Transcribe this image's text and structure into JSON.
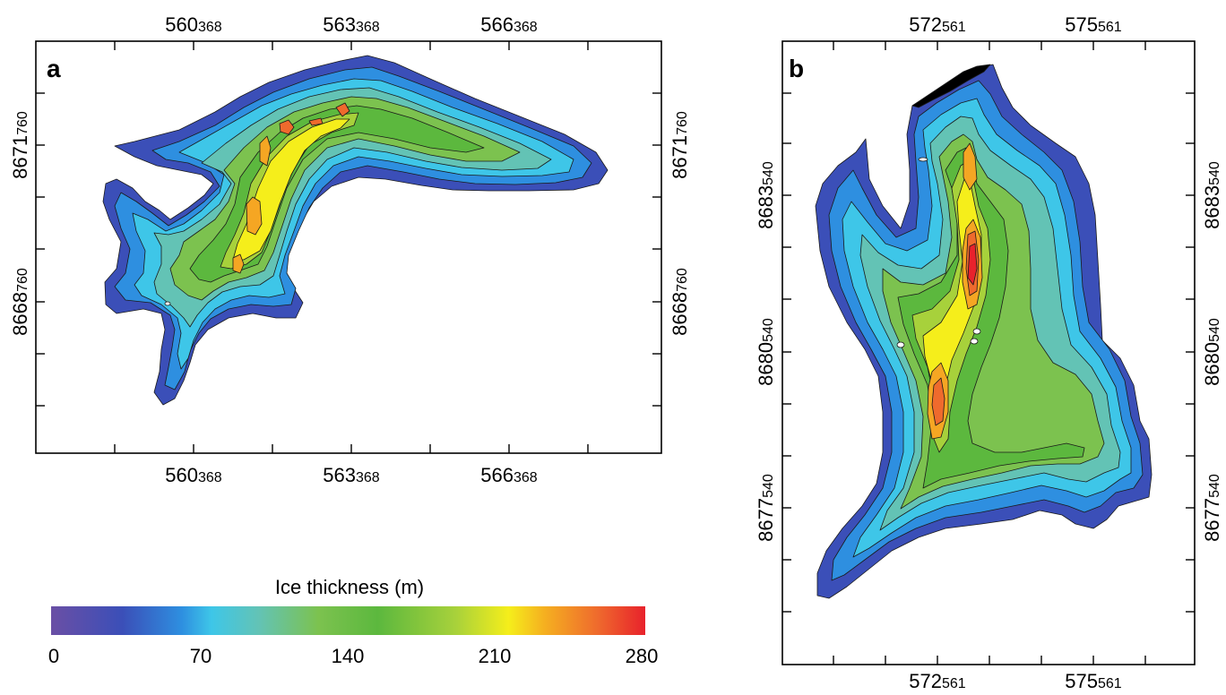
{
  "panel_a": {
    "label": "a",
    "top_ticks": [
      {
        "main": "560",
        "sub": "368"
      },
      {
        "main": "563",
        "sub": "368"
      },
      {
        "main": "566",
        "sub": "368"
      }
    ],
    "bottom_ticks": [
      {
        "main": "560",
        "sub": "368"
      },
      {
        "main": "563",
        "sub": "368"
      },
      {
        "main": "566",
        "sub": "368"
      }
    ],
    "left_ticks": [
      {
        "main": "8671",
        "sub": "760"
      },
      {
        "main": "8668",
        "sub": "760"
      }
    ],
    "right_ticks": [
      {
        "main": "8671",
        "sub": "760"
      },
      {
        "main": "8668",
        "sub": "760"
      }
    ]
  },
  "panel_b": {
    "label": "b",
    "top_ticks": [
      {
        "main": "572",
        "sub": "561"
      },
      {
        "main": "575",
        "sub": "561"
      }
    ],
    "bottom_ticks": [
      {
        "main": "572",
        "sub": "561"
      },
      {
        "main": "575",
        "sub": "561"
      }
    ],
    "left_ticks": [
      {
        "main": "8683",
        "sub": "540"
      },
      {
        "main": "8680",
        "sub": "540"
      },
      {
        "main": "8677",
        "sub": "540"
      }
    ],
    "right_ticks": [
      {
        "main": "8683",
        "sub": "540"
      },
      {
        "main": "8680",
        "sub": "540"
      },
      {
        "main": "8677",
        "sub": "540"
      }
    ]
  },
  "colorbar": {
    "title": "Ice thickness (m)",
    "labels": [
      "0",
      "70",
      "140",
      "210",
      "280"
    ],
    "colors": [
      "#6a4fa5",
      "#3b4fb8",
      "#2e8fe0",
      "#3ec6e8",
      "#63c3b5",
      "#7cc24f",
      "#5cb83e",
      "#a7d13b",
      "#f5ee1b",
      "#f5a623",
      "#ef6a2d",
      "#e8222c"
    ]
  }
}
